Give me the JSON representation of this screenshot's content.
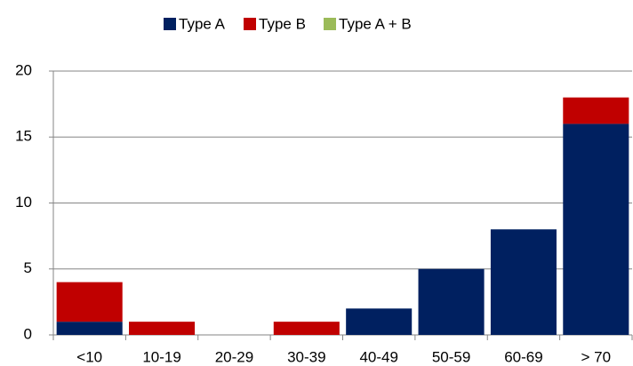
{
  "chart_data": {
    "type": "stacked_bar",
    "categories": [
      "<10",
      "10-19",
      "20-29",
      "30-39",
      "40-49",
      "50-59",
      "60-69",
      "> 70"
    ],
    "series": [
      {
        "name": "Type A",
        "color": "#002060",
        "values": [
          1,
          0,
          0,
          0,
          2,
          5,
          8,
          16
        ]
      },
      {
        "name": "Type B",
        "color": "#c00000",
        "values": [
          3,
          1,
          0,
          1,
          0,
          0,
          0,
          2
        ]
      },
      {
        "name": "Type A + B",
        "color": "#9bbb59",
        "values": [
          0,
          0,
          0,
          0,
          0,
          0,
          0,
          0
        ]
      }
    ],
    "ylim": [
      0,
      20
    ],
    "yticks": [
      0,
      5,
      10,
      15,
      20
    ],
    "grid": true,
    "legend": "top"
  }
}
